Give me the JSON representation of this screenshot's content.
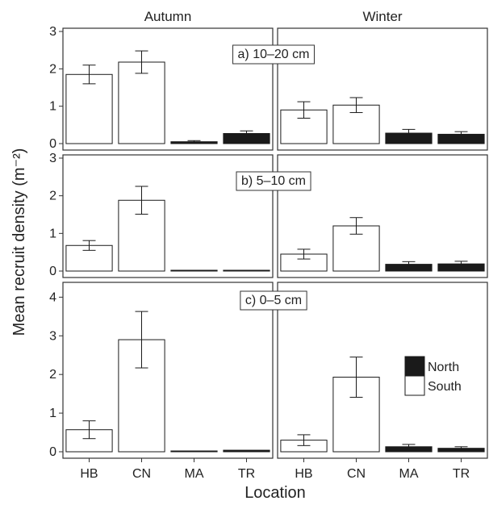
{
  "chart_data": {
    "type": "bar",
    "xlabel": "Location",
    "ylabel": "Mean recruit density (m⁻²)",
    "facet_columns": [
      "Autumn",
      "Winter"
    ],
    "categories": [
      "HB",
      "CN",
      "MA",
      "TR"
    ],
    "category_group": {
      "HB": "South",
      "CN": "South",
      "MA": "North",
      "TR": "North"
    },
    "legend": {
      "placement": "inside-bottom-right",
      "entries": [
        {
          "name": "North",
          "color": "#1a1a1a"
        },
        {
          "name": "South",
          "color": "#ffffff"
        }
      ]
    },
    "panels": [
      {
        "label": "a) 10–20 cm",
        "ylim": [
          0,
          3
        ],
        "yticks": [
          0,
          1,
          2,
          3
        ],
        "series": [
          {
            "name": "Autumn",
            "values": [
              1.85,
              2.18,
              0.05,
              0.27
            ],
            "errors": [
              0.25,
              0.3,
              0.03,
              0.07
            ]
          },
          {
            "name": "Winter",
            "values": [
              0.9,
              1.03,
              0.28,
              0.25
            ],
            "errors": [
              0.22,
              0.2,
              0.1,
              0.07
            ]
          }
        ]
      },
      {
        "label": "b) 5–10 cm",
        "ylim": [
          0,
          3
        ],
        "yticks": [
          0,
          1,
          2,
          3
        ],
        "series": [
          {
            "name": "Autumn",
            "values": [
              0.68,
              1.88,
              0.02,
              0.02
            ],
            "errors": [
              0.13,
              0.37,
              0.01,
              0.01
            ]
          },
          {
            "name": "Winter",
            "values": [
              0.45,
              1.2,
              0.18,
              0.19
            ],
            "errors": [
              0.13,
              0.22,
              0.07,
              0.07
            ]
          }
        ]
      },
      {
        "label": "c) 0–5 cm",
        "ylim": [
          0,
          4.3
        ],
        "yticks": [
          0,
          1,
          2,
          3,
          4
        ],
        "series": [
          {
            "name": "Autumn",
            "values": [
              0.57,
              2.9,
              0.01,
              0.04
            ],
            "errors": [
              0.23,
              0.73,
              0.005,
              0.02
            ]
          },
          {
            "name": "Winter",
            "values": [
              0.3,
              1.93,
              0.13,
              0.09
            ],
            "errors": [
              0.14,
              0.52,
              0.06,
              0.04
            ]
          }
        ]
      }
    ]
  }
}
